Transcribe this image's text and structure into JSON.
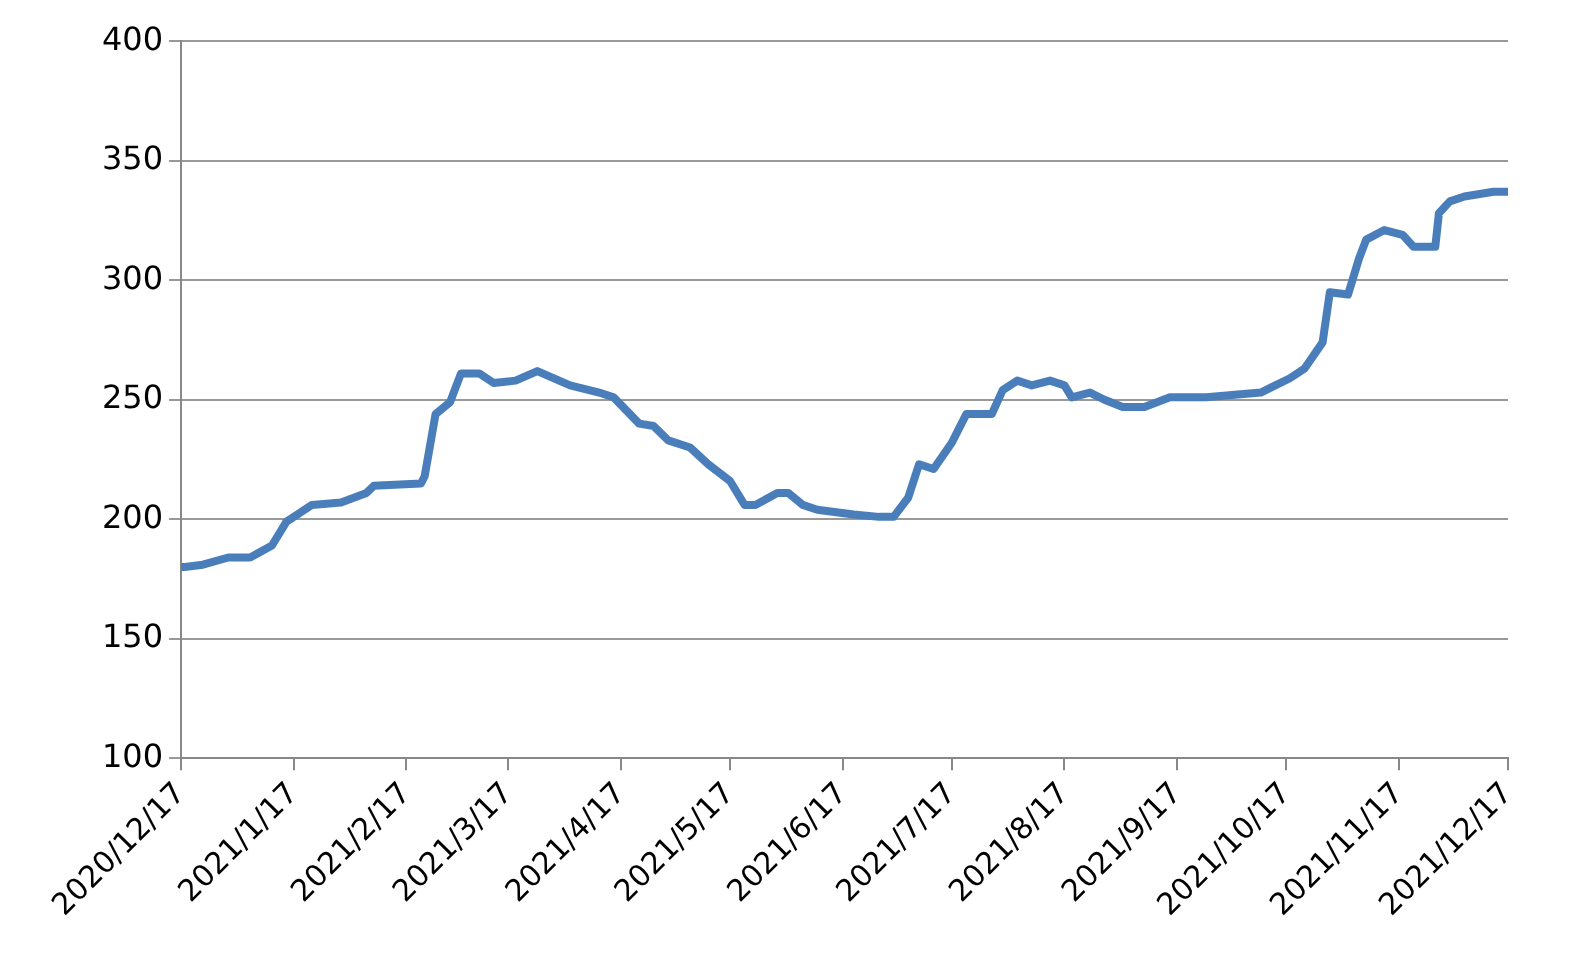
{
  "chart_data": {
    "type": "line",
    "x": [
      "2020-12-17",
      "2020-12-18",
      "2020-12-23",
      "2020-12-30",
      "2021-01-05",
      "2021-01-11",
      "2021-01-15",
      "2021-01-22",
      "2021-01-30",
      "2021-02-06",
      "2021-02-08",
      "2021-02-21",
      "2021-02-22",
      "2021-02-25",
      "2021-03-01",
      "2021-03-04",
      "2021-03-09",
      "2021-03-13",
      "2021-03-19",
      "2021-03-25",
      "2021-03-31",
      "2021-04-03",
      "2021-04-11",
      "2021-04-15",
      "2021-04-22",
      "2021-04-26",
      "2021-04-30",
      "2021-05-06",
      "2021-05-11",
      "2021-05-17",
      "2021-05-21",
      "2021-05-24",
      "2021-05-30",
      "2021-06-02",
      "2021-06-06",
      "2021-06-10",
      "2021-06-20",
      "2021-06-27",
      "2021-07-01",
      "2021-07-05",
      "2021-07-08",
      "2021-07-12",
      "2021-07-17",
      "2021-07-21",
      "2021-07-28",
      "2021-07-31",
      "2021-08-04",
      "2021-08-08",
      "2021-08-13",
      "2021-08-17",
      "2021-08-19",
      "2021-08-24",
      "2021-08-28",
      "2021-09-02",
      "2021-09-08",
      "2021-09-15",
      "2021-09-25",
      "2021-10-10",
      "2021-10-18",
      "2021-10-22",
      "2021-10-27",
      "2021-10-29",
      "2021-11-03",
      "2021-11-06",
      "2021-11-08",
      "2021-11-13",
      "2021-11-18",
      "2021-11-21",
      "2021-11-27",
      "2021-11-28",
      "2021-12-01",
      "2021-12-05",
      "2021-12-13",
      "2021-12-17"
    ],
    "series": [
      {
        "color": "#4a7ebb",
        "values": [
          180,
          180,
          181,
          184,
          184,
          189,
          199,
          206,
          207,
          211,
          214,
          215,
          218,
          244,
          249,
          261,
          261,
          257,
          258,
          262,
          258,
          256,
          253,
          251,
          240,
          239,
          233,
          230,
          223,
          216,
          206,
          206,
          211,
          211,
          206,
          204,
          202,
          201,
          201,
          209,
          223,
          221,
          232,
          244,
          244,
          254,
          258,
          256,
          258,
          256,
          251,
          253,
          250,
          247,
          247,
          251,
          251,
          253,
          259,
          263,
          274,
          295,
          294,
          309,
          317,
          321,
          319,
          314,
          314,
          328,
          333,
          335,
          337,
          337
        ]
      }
    ],
    "xlim": [
      "2020-12-17",
      "2021-12-17"
    ],
    "xticks": [
      {
        "value": "2020-12-17",
        "label": "2020/12/17"
      },
      {
        "value": "2021-01-17",
        "label": "2021/1/17"
      },
      {
        "value": "2021-02-17",
        "label": "2021/2/17"
      },
      {
        "value": "2021-03-17",
        "label": "2021/3/17"
      },
      {
        "value": "2021-04-17",
        "label": "2021/4/17"
      },
      {
        "value": "2021-05-17",
        "label": "2021/5/17"
      },
      {
        "value": "2021-06-17",
        "label": "2021/6/17"
      },
      {
        "value": "2021-07-17",
        "label": "2021/7/17"
      },
      {
        "value": "2021-08-17",
        "label": "2021/8/17"
      },
      {
        "value": "2021-09-17",
        "label": "2021/9/17"
      },
      {
        "value": "2021-10-17",
        "label": "2021/10/17"
      },
      {
        "value": "2021-11-17",
        "label": "2021/11/17"
      },
      {
        "value": "2021-12-17",
        "label": "2021/12/17"
      }
    ],
    "ylim": [
      100,
      400
    ],
    "yticks": [
      100,
      150,
      200,
      250,
      300,
      350,
      400
    ],
    "grid": "y",
    "legend": false,
    "marker": "none",
    "line_style": "solid"
  }
}
